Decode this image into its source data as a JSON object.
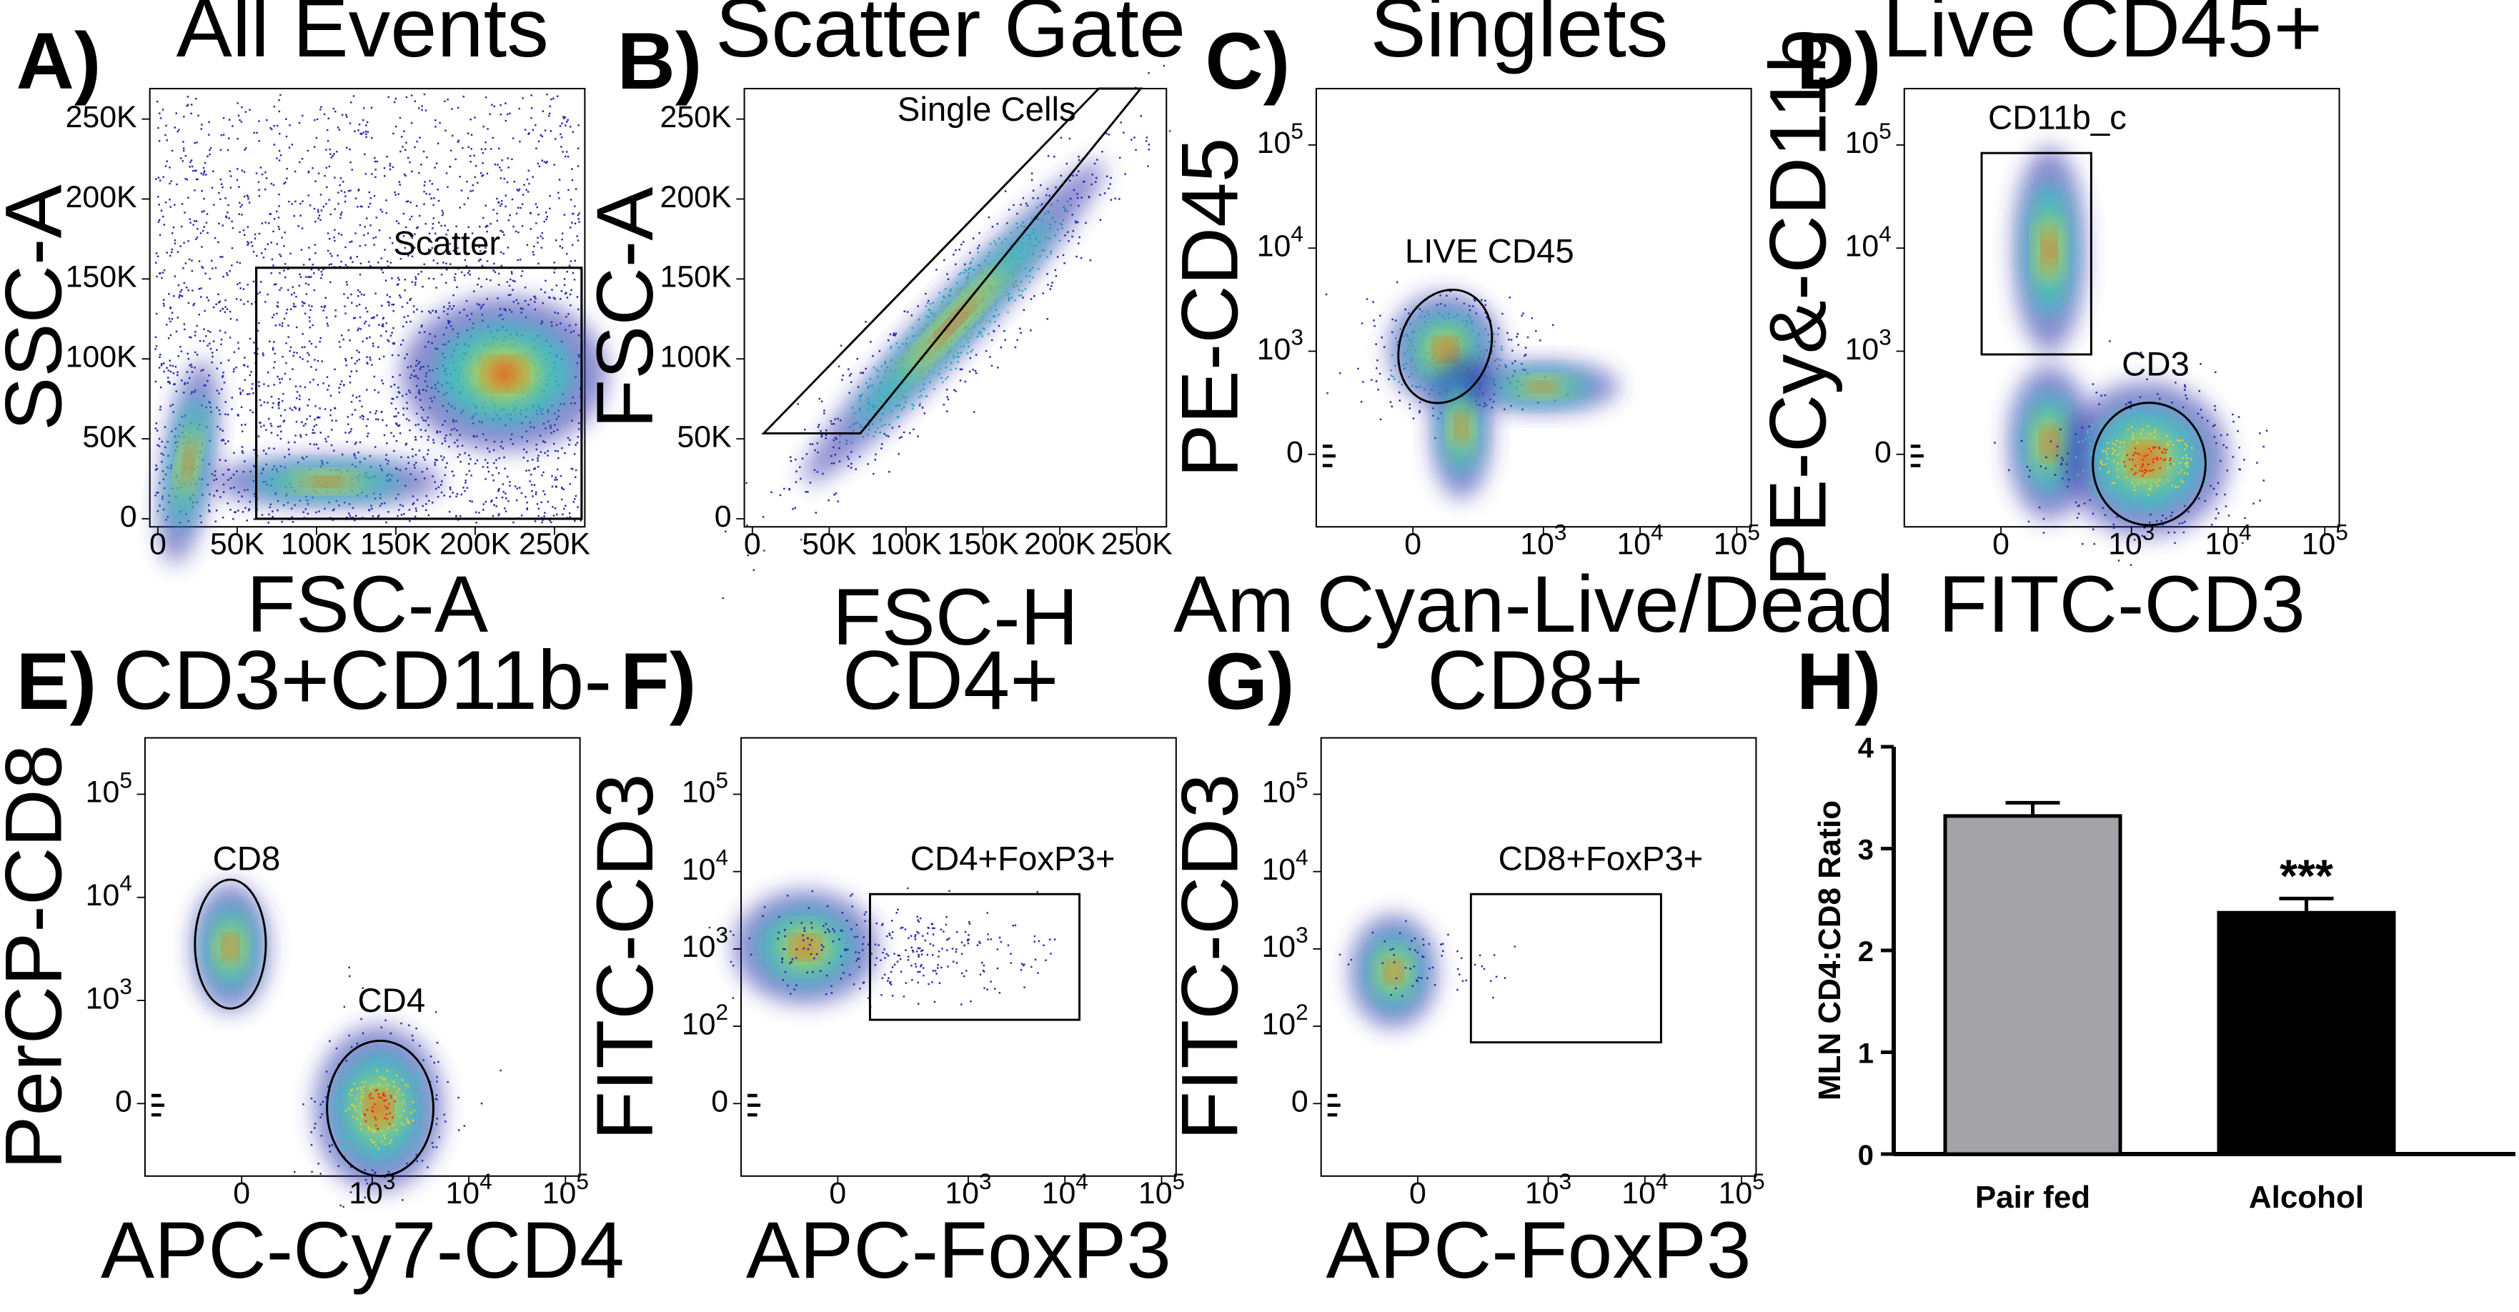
{
  "colors": {
    "density_low": "#2a2aa8",
    "density_mid": "#30c8c0",
    "density_high": "#e83018",
    "pair_fed_bar": "#a4a4a8",
    "alcohol_bar": "#000000"
  },
  "chart_data": [
    {
      "id": "A",
      "type": "scatter",
      "panel_label": "A)",
      "title": "All Events",
      "xlabel": "FSC-A",
      "ylabel": "SSC-A",
      "scale": "linear",
      "xlim": [
        0,
        262
      ],
      "ylim": [
        0,
        262
      ],
      "x_ticks": [
        "0",
        "50K",
        "100K",
        "150K",
        "200K",
        "250K"
      ],
      "y_ticks": [
        "0",
        "50K",
        "100K",
        "150K",
        "200K",
        "250K"
      ],
      "gates": [
        {
          "name": "Scatter",
          "shape": "rect",
          "x_range_k": [
            62,
            262
          ],
          "y_range_k": [
            0,
            157
          ]
        }
      ]
    },
    {
      "id": "B",
      "type": "scatter",
      "panel_label": "B)",
      "title": "Scatter Gate",
      "xlabel": "FSC-H",
      "ylabel": "FSC-A",
      "scale": "linear",
      "xlim": [
        0,
        262
      ],
      "ylim": [
        0,
        262
      ],
      "x_ticks": [
        "0",
        "50K",
        "100K",
        "150K",
        "200K",
        "250K"
      ],
      "y_ticks": [
        "0",
        "50K",
        "100K",
        "150K",
        "200K",
        "250K"
      ],
      "gates": [
        {
          "name": "Single Cells",
          "shape": "polygon"
        }
      ]
    },
    {
      "id": "C",
      "type": "scatter",
      "panel_label": "C)",
      "title": "Singlets",
      "xlabel": "Am Cyan-Live/Dead",
      "ylabel": "PE-CD45",
      "scale": "log",
      "x_ticks": [
        "0",
        "10^3",
        "10^4",
        "10^5"
      ],
      "y_ticks": [
        "0",
        "10^3",
        "10^4",
        "10^5"
      ],
      "gates": [
        {
          "name": "LIVE CD45",
          "shape": "ellipse"
        }
      ]
    },
    {
      "id": "D",
      "type": "scatter",
      "panel_label": "D)",
      "title": "Live CD45+",
      "xlabel": "FITC-CD3",
      "ylabel": "PE-Cy&-CD11b",
      "scale": "log",
      "x_ticks": [
        "0",
        "10^3",
        "10^4",
        "10^5"
      ],
      "y_ticks": [
        "0",
        "10^3",
        "10^4",
        "10^5"
      ],
      "gates": [
        {
          "name": "CD11b_c",
          "shape": "rect"
        },
        {
          "name": "CD3",
          "shape": "ellipse"
        }
      ]
    },
    {
      "id": "E",
      "type": "scatter",
      "panel_label": "E)",
      "title": "CD3+CD11b-",
      "xlabel": "APC-Cy7-CD4",
      "ylabel": "PerCP-CD8",
      "scale": "log",
      "x_ticks": [
        "0",
        "10^3",
        "10^4",
        "10^5"
      ],
      "y_ticks": [
        "0",
        "10^3",
        "10^4",
        "10^5"
      ],
      "gates": [
        {
          "name": "CD8",
          "shape": "ellipse"
        },
        {
          "name": "CD4",
          "shape": "ellipse"
        }
      ]
    },
    {
      "id": "F",
      "type": "scatter",
      "panel_label": "F)",
      "title": "CD4+",
      "xlabel": "APC-FoxP3",
      "ylabel": "FITC-CD3",
      "scale": "log",
      "x_ticks": [
        "0",
        "10^3",
        "10^4",
        "10^5"
      ],
      "y_ticks": [
        "0",
        "10^2",
        "10^3",
        "10^4",
        "10^5"
      ],
      "gates": [
        {
          "name": "CD4+FoxP3+",
          "shape": "rect"
        }
      ]
    },
    {
      "id": "G",
      "type": "scatter",
      "panel_label": "G)",
      "title": "CD8+",
      "xlabel": "APC-FoxP3",
      "ylabel": "FITC-CD3",
      "scale": "log",
      "x_ticks": [
        "0",
        "10^3",
        "10^4",
        "10^5"
      ],
      "y_ticks": [
        "0",
        "10^2",
        "10^3",
        "10^4",
        "10^5"
      ],
      "gates": [
        {
          "name": "CD8+FoxP3+",
          "shape": "rect"
        }
      ]
    },
    {
      "id": "H",
      "type": "bar",
      "panel_label": "H)",
      "title": "",
      "categories": [
        "Pair fed",
        "Alcohol"
      ],
      "values": [
        3.32,
        2.37
      ],
      "errors": [
        0.13,
        0.14
      ],
      "ylabel": "MLN CD4:CD8 Ratio",
      "xlabel": "",
      "ylim": [
        0,
        4
      ],
      "y_ticks": [
        "0",
        "1",
        "2",
        "3",
        "4"
      ],
      "significance": [
        "",
        "***"
      ]
    }
  ]
}
